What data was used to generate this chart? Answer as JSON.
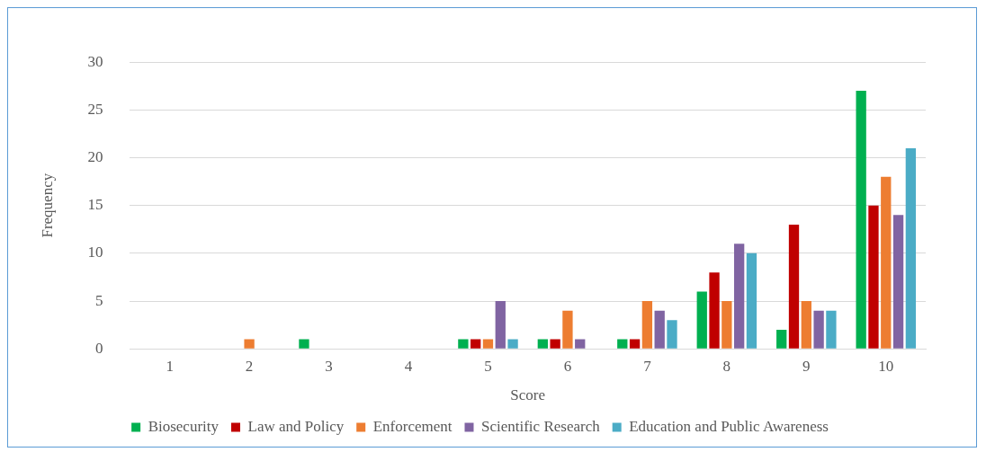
{
  "chart_data": {
    "type": "bar",
    "xlabel": "Score",
    "ylabel": "Frequency",
    "categories": [
      "1",
      "2",
      "3",
      "4",
      "5",
      "6",
      "7",
      "8",
      "9",
      "10"
    ],
    "series": [
      {
        "name": "Biosecurity",
        "color": "#00b050",
        "values": [
          0,
          0,
          1,
          0,
          1,
          1,
          1,
          6,
          2,
          27
        ]
      },
      {
        "name": "Law and Policy",
        "color": "#c00000",
        "values": [
          0,
          0,
          0,
          0,
          1,
          1,
          1,
          8,
          13,
          15
        ]
      },
      {
        "name": "Enforcement",
        "color": "#ed7d31",
        "values": [
          0,
          1,
          0,
          0,
          1,
          4,
          5,
          5,
          5,
          18
        ]
      },
      {
        "name": "Scientific Research",
        "color": "#8064a2",
        "values": [
          0,
          0,
          0,
          0,
          5,
          1,
          4,
          11,
          4,
          14
        ]
      },
      {
        "name": "Education and Public Awareness",
        "color": "#4bacc6",
        "values": [
          0,
          0,
          0,
          0,
          1,
          0,
          3,
          10,
          4,
          21
        ]
      }
    ],
    "ylim": [
      0,
      30
    ],
    "yticks": [
      0,
      5,
      10,
      15,
      20,
      25,
      30
    ],
    "grid": "y",
    "legend": "bottom"
  }
}
